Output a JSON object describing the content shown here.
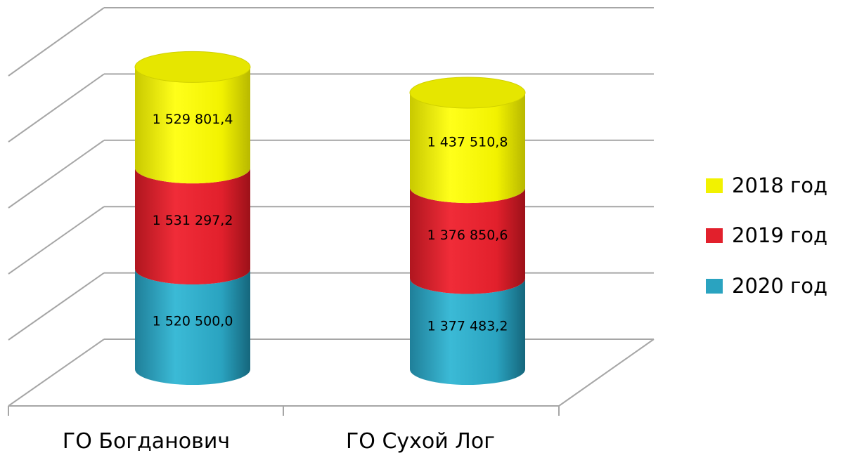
{
  "chart_data": {
    "type": "bar",
    "stacked": true,
    "style": "3d-cylinder",
    "categories": [
      "ГО Богданович",
      "ГО Сухой Лог"
    ],
    "series": [
      {
        "name": "2020 год",
        "color": "#2aa3c0",
        "values": [
          1520500.0,
          1377483.2
        ],
        "labels": [
          "1 520 500,0",
          "1 377 483,2"
        ]
      },
      {
        "name": "2019 год",
        "color": "#e2202c",
        "values": [
          1531297.2,
          1376850.6
        ],
        "labels": [
          "1 531 297,2",
          "1 376 850,6"
        ]
      },
      {
        "name": "2018 год",
        "color": "#f2f200",
        "values": [
          1529801.4,
          1437510.8
        ],
        "labels": [
          "1 529 801,4",
          "1 437 510,8"
        ]
      }
    ],
    "legend_order": [
      "2018 год",
      "2019 год",
      "2020 год"
    ],
    "ylim": [
      0,
      5000000
    ],
    "grid": true,
    "legend_position": "right",
    "title": "",
    "xlabel": "",
    "ylabel": ""
  }
}
